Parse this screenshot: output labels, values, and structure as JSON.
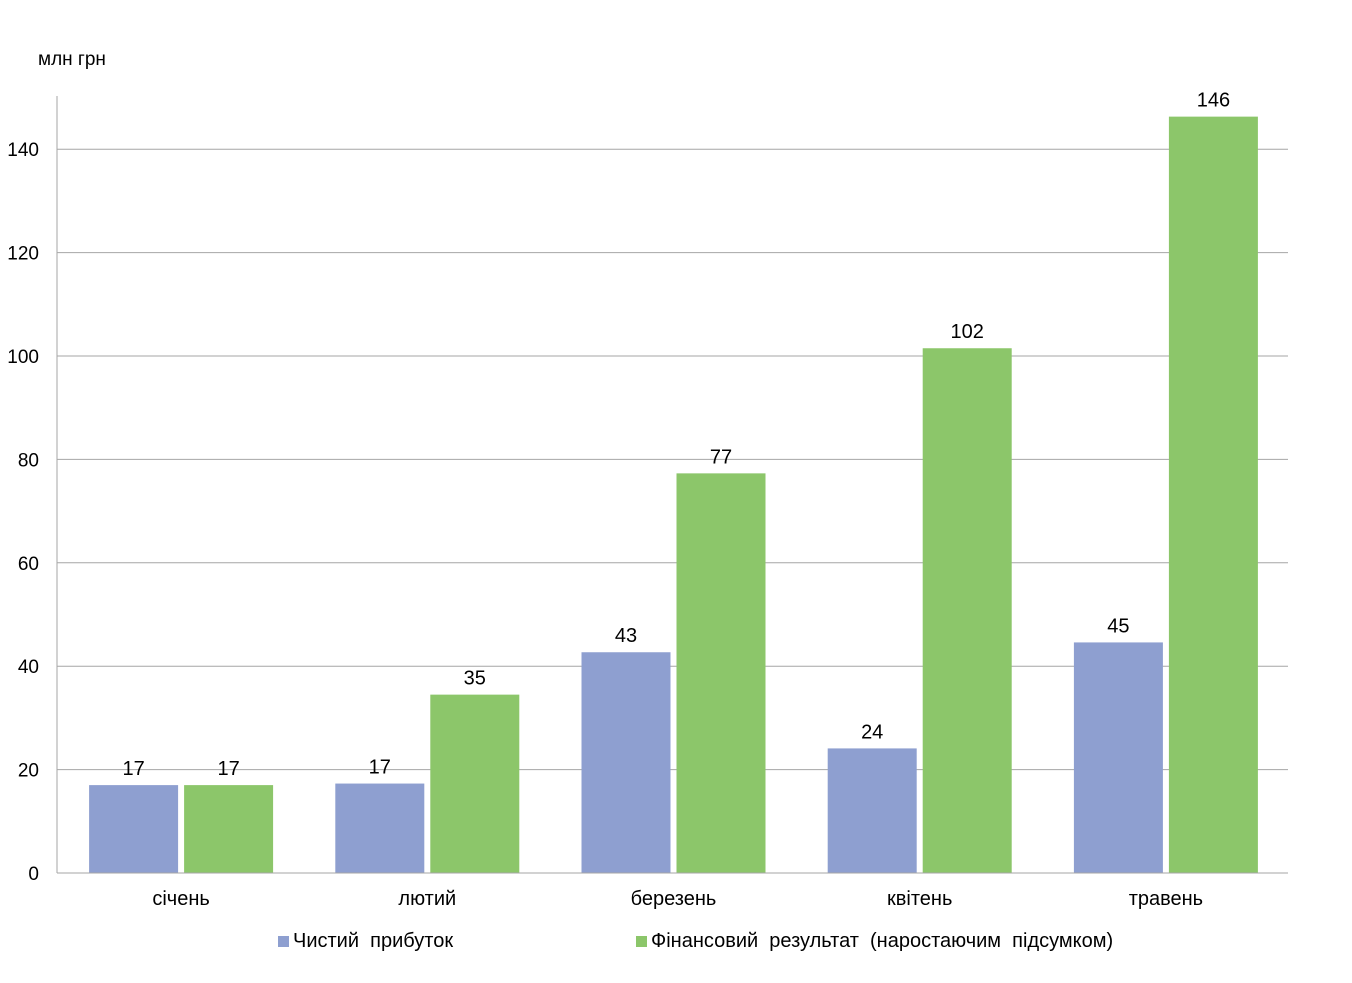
{
  "chart_data": {
    "type": "bar",
    "ylabel": "млн  грн",
    "categories": [
      "січень",
      "лютий",
      "березень",
      "квітень",
      "травень"
    ],
    "ylim": [
      0,
      150
    ],
    "yticks": [
      0,
      20,
      40,
      60,
      80,
      100,
      120,
      140
    ],
    "grid": true,
    "legend_position": "bottom",
    "series": [
      {
        "name": "Чистий  прибуток",
        "color": "#8e9fd0",
        "values": [
          17,
          17.3,
          42.7,
          24.1,
          44.6
        ],
        "labels": [
          "17",
          "17",
          "43",
          "24",
          "45"
        ]
      },
      {
        "name": "Фінансовий  результат  (наростаючим  підсумком)",
        "color": "#8cc66a",
        "values": [
          17,
          34.5,
          77.3,
          101.5,
          146.3
        ],
        "labels": [
          "17",
          "35",
          "77",
          "102",
          "146"
        ]
      }
    ]
  }
}
